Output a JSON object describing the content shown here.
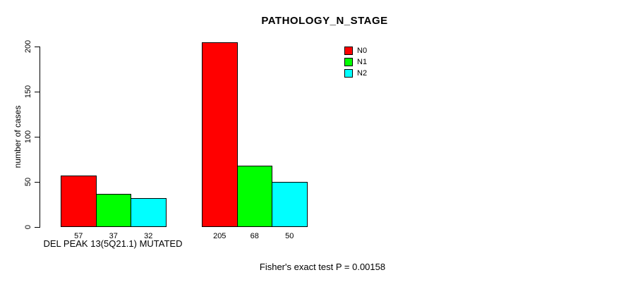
{
  "title": "PATHOLOGY_N_STAGE",
  "annotation": "Fisher's exact test P = 0.00158",
  "chart_data": {
    "type": "bar",
    "title": "PATHOLOGY_N_STAGE",
    "categories": [
      "DEL PEAK 13(5Q21.1) MUTATED",
      ""
    ],
    "series": [
      {
        "name": "N0",
        "color": "#ff0000",
        "values": [
          57,
          205
        ]
      },
      {
        "name": "N1",
        "color": "#00ff00",
        "values": [
          37,
          68
        ]
      },
      {
        "name": "N2",
        "color": "#00ffff",
        "values": [
          32,
          50
        ]
      }
    ],
    "xlabel": "DEL PEAK 13(5Q21.1) MUTATED",
    "ylabel": "number of cases",
    "yticks": [
      0,
      50,
      100,
      150,
      200
    ],
    "ylim": [
      0,
      205
    ],
    "grid": false,
    "bar_value_labels_shown": true,
    "legend_position": "top-right",
    "annotation": "Fisher's exact test P = 0.00158"
  }
}
